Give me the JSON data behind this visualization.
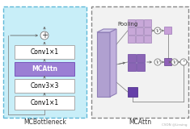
{
  "bg_color": "#ffffff",
  "left_box_bg": "#c8eef8",
  "left_box_border": "#60b8d8",
  "conv_box_color": "#ffffff",
  "conv_box_border": "#aaaaaa",
  "mcattn_box_color": "#9b7fd4",
  "mcattn_box_border": "#7755bb",
  "arrow_color": "#666666",
  "title_left": "MCBottleneck",
  "title_right": "MCAttn",
  "label_pooling": "Pooling",
  "label_conv1a": "Conv1×1",
  "label_conv2": "Conv3×3",
  "label_conv1b": "Conv1×1",
  "label_mcattn": "MCAttn",
  "fm_front": "#b0a0d0",
  "fm_top": "#d0c8e8",
  "fm_right": "#c0b0dc",
  "fm_border": "#9080b8",
  "grid3_light": "#c8a8d8",
  "grid3_border": "#a080b8",
  "grid2_fill": "#8b65b5",
  "grid2_border": "#6a45a0",
  "sq1_fill": "#6640a8",
  "sq1_border": "#4820880",
  "sq_out_top": "#c8a8d8",
  "sq_out_mid": "#9060b8",
  "circle_bg": "#ffffff",
  "circle_border": "#888888",
  "watermark": "CSDN @Linsing"
}
